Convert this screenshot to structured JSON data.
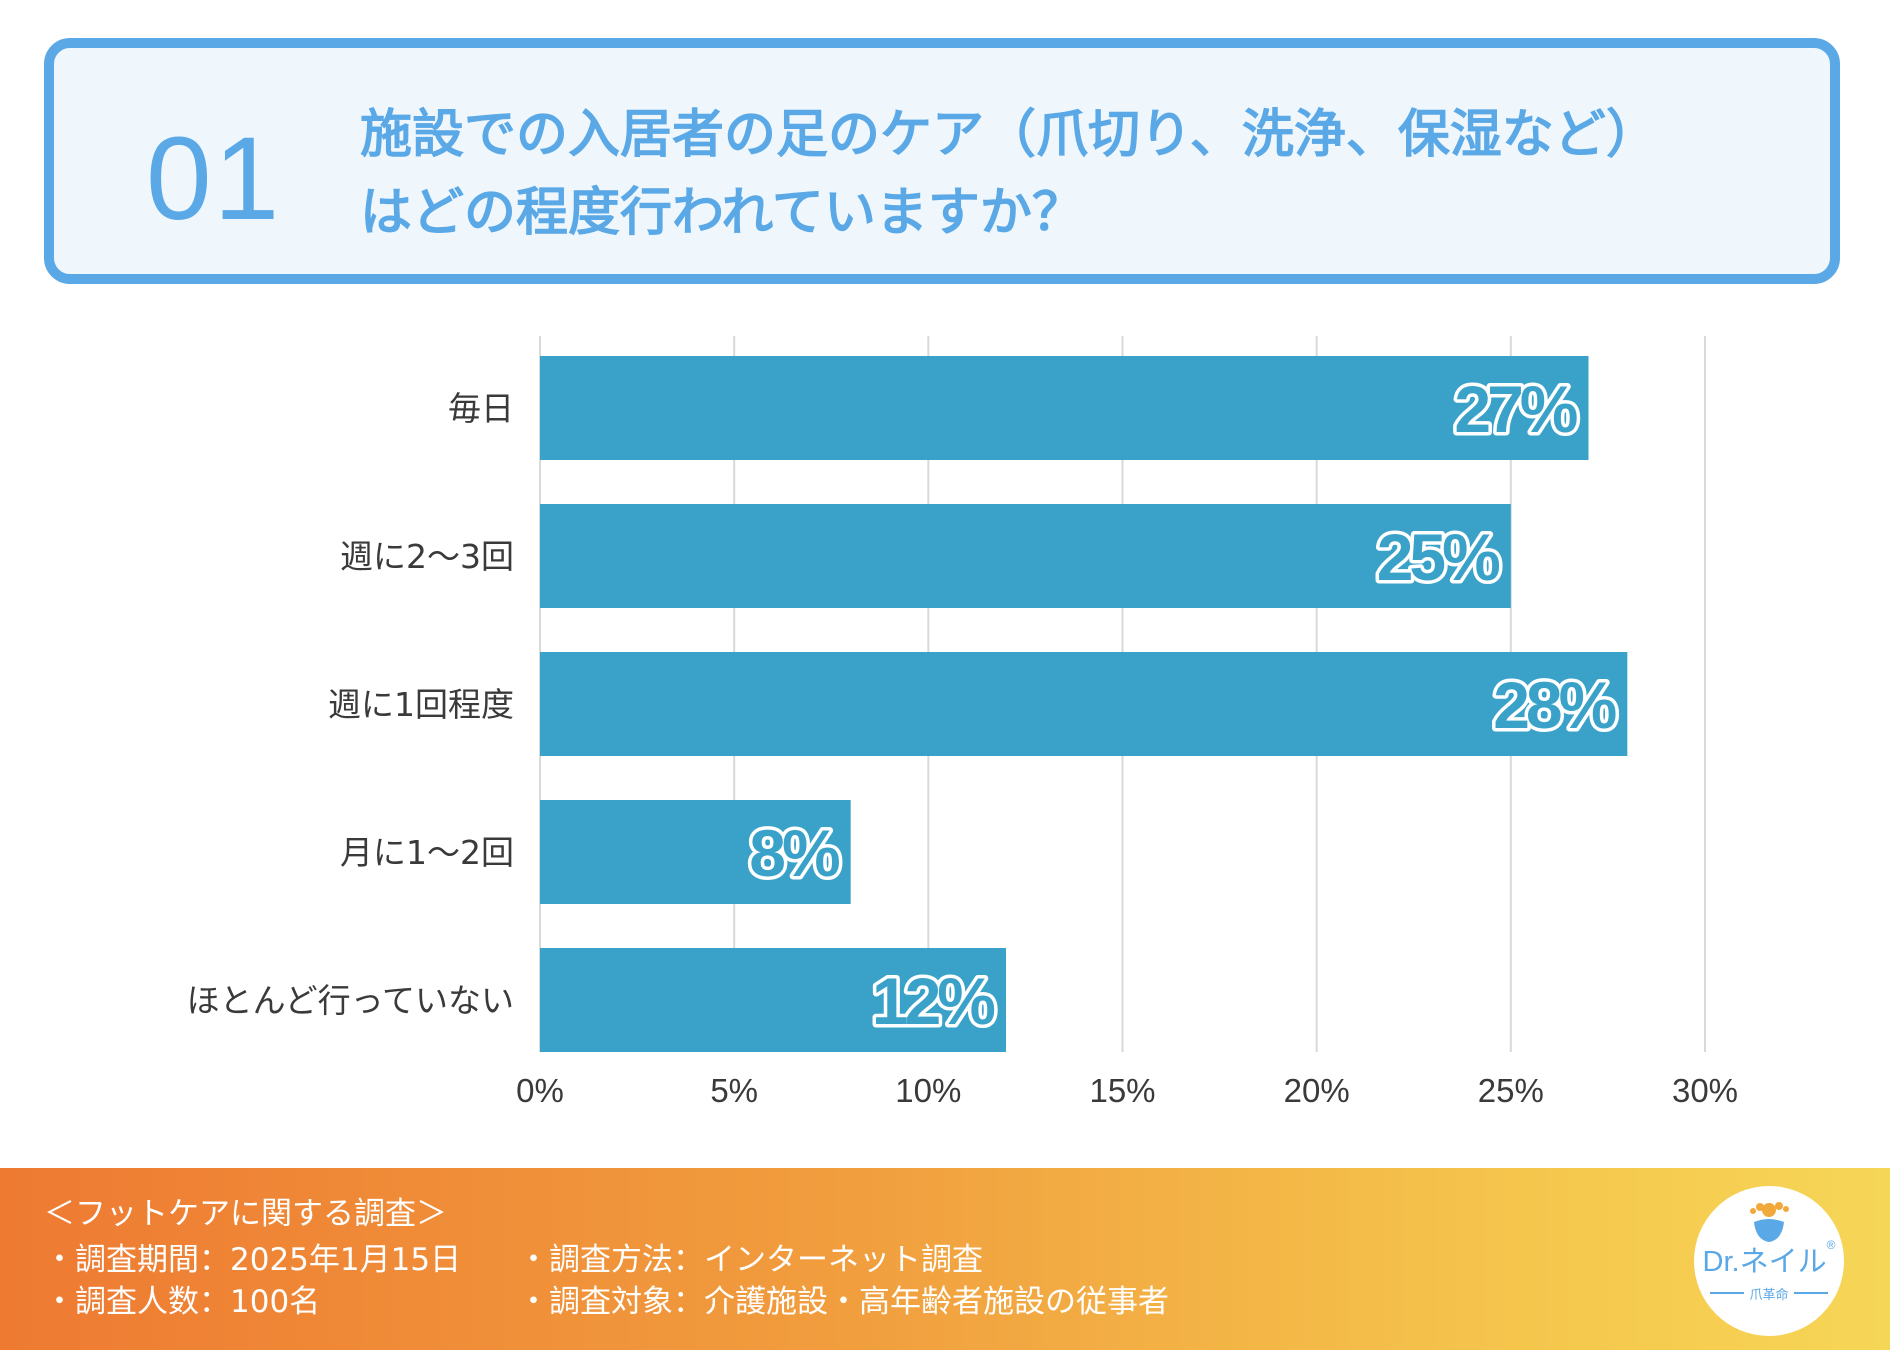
{
  "question": {
    "number": "01",
    "line1": "施設での入居者の足のケア（爪切り、洗浄、保湿など）",
    "line2": "はどの程度行われていますか？"
  },
  "colors": {
    "accent": "#5aa8e6",
    "bar": "#3aa2c8",
    "grid": "#d9d9d9",
    "label": "#3a3a3a"
  },
  "chart_data": {
    "type": "bar",
    "orientation": "horizontal",
    "categories": [
      "毎日",
      "週に2〜3回",
      "週に1回程度",
      "月に1〜2回",
      "ほとんど行っていない"
    ],
    "values": [
      27,
      25,
      28,
      8,
      12
    ],
    "data_labels": [
      "27%",
      "25%",
      "28%",
      "8%",
      "12%"
    ],
    "xlim": [
      0,
      30
    ],
    "xticks": [
      0,
      5,
      10,
      15,
      20,
      25,
      30
    ],
    "xtick_labels": [
      "0%",
      "5%",
      "10%",
      "15%",
      "20%",
      "25%",
      "30%"
    ],
    "grid": true,
    "title": "",
    "xlabel": "",
    "ylabel": ""
  },
  "footer": {
    "heading": "＜フットケアに関する調査＞",
    "period": "・調査期間：2025年1月15日",
    "method": "・調査方法：インターネット調査",
    "respondents": "・調査人数：100名",
    "target": "・調査対象：介護施設・高年齢者施設の従事者"
  },
  "logo": {
    "text_dr": "Dr.",
    "text_name": "ネイル",
    "registered": "®",
    "subtitle": "爪革命"
  }
}
